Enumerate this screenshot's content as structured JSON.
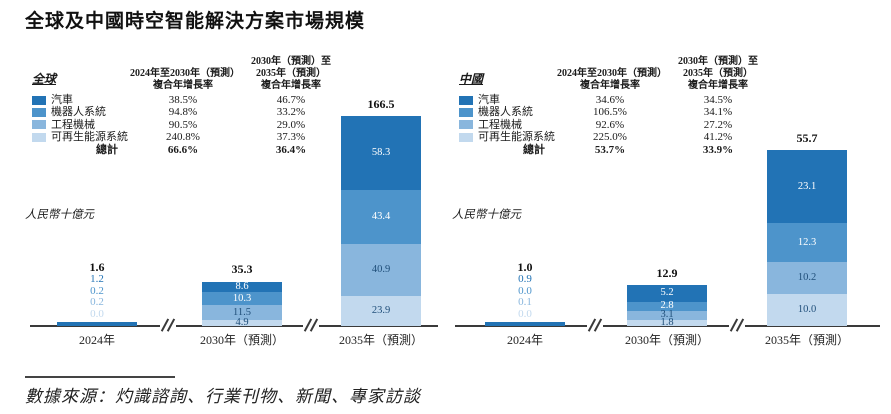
{
  "title": "全球及中國時空智能解決方案市場規模",
  "source": "數據來源：灼識諮詢、行業刊物、新聞、專家訪談",
  "colors": {
    "series": [
      "#2273B5",
      "#4D94CB",
      "#89B6DD",
      "#C2D9EE"
    ],
    "segment_label": [
      "#FFFFFF",
      "#FFFFFF",
      "#1F4E79",
      "#1F4E79"
    ],
    "total_label": "#111111",
    "axis": "#3A3A3A"
  },
  "panels": [
    {
      "region": "全球",
      "unit": "人民幣十億元",
      "col1_header": [
        "2024年至2030年（預測）",
        "複合年增長率"
      ],
      "col2_header": [
        "2030年（預測）至",
        "2035年（預測）",
        "複合年增長率"
      ],
      "rows": [
        {
          "label": "汽車",
          "cagr1": "38.5%",
          "cagr2": "46.7%"
        },
        {
          "label": "機器人系統",
          "cagr1": "94.8%",
          "cagr2": "33.2%"
        },
        {
          "label": "工程機械",
          "cagr1": "90.5%",
          "cagr2": "29.0%"
        },
        {
          "label": "可再生能源系統",
          "cagr1": "240.8%",
          "cagr2": "37.3%"
        }
      ],
      "total_row": {
        "label": "總計",
        "cagr1": "66.6%",
        "cagr2": "36.4%"
      }
    },
    {
      "region": "中國",
      "unit": "人民幣十億元",
      "col1_header": [
        "2024年至2030年（預測）",
        "複合年增長率"
      ],
      "col2_header": [
        "2030年（預測）至",
        "2035年（預測）",
        "複合年增長率"
      ],
      "rows": [
        {
          "label": "汽車",
          "cagr1": "34.6%",
          "cagr2": "34.5%"
        },
        {
          "label": "機器人系統",
          "cagr1": "106.5%",
          "cagr2": "34.1%"
        },
        {
          "label": "工程機械",
          "cagr1": "92.6%",
          "cagr2": "27.2%"
        },
        {
          "label": "可再生能源系統",
          "cagr1": "225.0%",
          "cagr2": "41.2%"
        }
      ],
      "total_row": {
        "label": "總計",
        "cagr1": "53.7%",
        "cagr2": "33.9%"
      }
    }
  ],
  "chart_data": [
    {
      "type": "bar",
      "stacked": true,
      "title": "全球",
      "ylabel": "人民幣十億元",
      "categories": [
        "2024年",
        "2030年（預測）",
        "2035年（預測）"
      ],
      "series": [
        {
          "name": "汽車",
          "values": [
            1.2,
            8.6,
            58.3
          ]
        },
        {
          "name": "機器人系統",
          "values": [
            0.2,
            10.3,
            43.4
          ]
        },
        {
          "name": "工程機械",
          "values": [
            0.2,
            11.5,
            40.9
          ]
        },
        {
          "name": "可再生能源系統",
          "values": [
            0.0,
            4.9,
            23.9
          ]
        }
      ],
      "totals": [
        1.6,
        35.3,
        166.5
      ],
      "axis_break": true,
      "legend_position": "top-table",
      "grid": false
    },
    {
      "type": "bar",
      "stacked": true,
      "title": "中國",
      "ylabel": "人民幣十億元",
      "categories": [
        "2024年",
        "2030年（預測）",
        "2035年（預測）"
      ],
      "series": [
        {
          "name": "汽車",
          "values": [
            0.9,
            5.2,
            23.1
          ]
        },
        {
          "name": "機器人系統",
          "values": [
            0.0,
            2.8,
            12.3
          ]
        },
        {
          "name": "工程機械",
          "values": [
            0.1,
            3.1,
            10.2
          ]
        },
        {
          "name": "可再生能源系統",
          "values": [
            0.0,
            1.8,
            10.0
          ]
        }
      ],
      "totals": [
        1.0,
        12.9,
        55.7
      ],
      "axis_break": true,
      "legend_position": "top-table",
      "grid": false
    }
  ]
}
